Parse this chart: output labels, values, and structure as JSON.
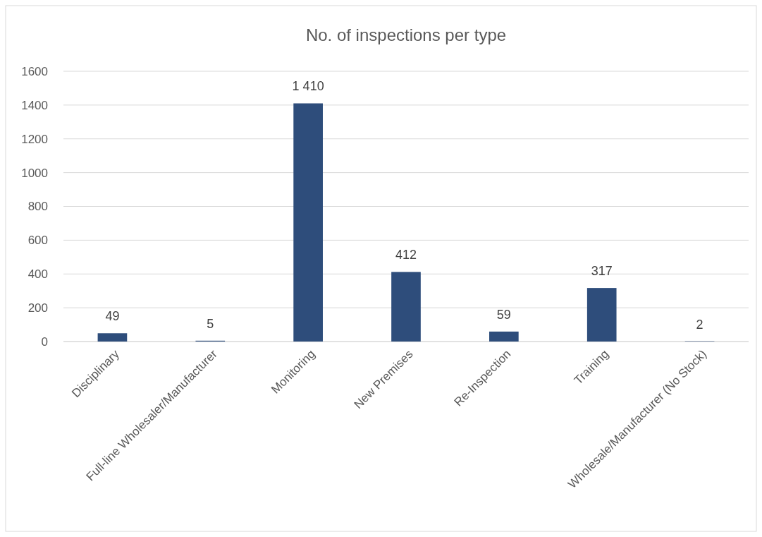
{
  "chart_data": {
    "type": "bar",
    "title": "No. of inspections per type",
    "categories": [
      "Disciplinary",
      "Full-line Wholesaler/Manufacturer",
      "Monitoring",
      "New Premises",
      "Re-Inspection",
      "Training",
      "Wholesale/Manufacturer (No Stock)"
    ],
    "values": [
      49,
      5,
      1410,
      412,
      59,
      317,
      2
    ],
    "value_labels": [
      "49",
      "5",
      "1 410",
      "412",
      "59",
      "317",
      "2"
    ],
    "color": "#2e4d7b",
    "ylim": [
      0,
      1600
    ],
    "yticks": [
      0,
      200,
      400,
      600,
      800,
      1000,
      1200,
      1400,
      1600
    ],
    "grid": "y"
  }
}
